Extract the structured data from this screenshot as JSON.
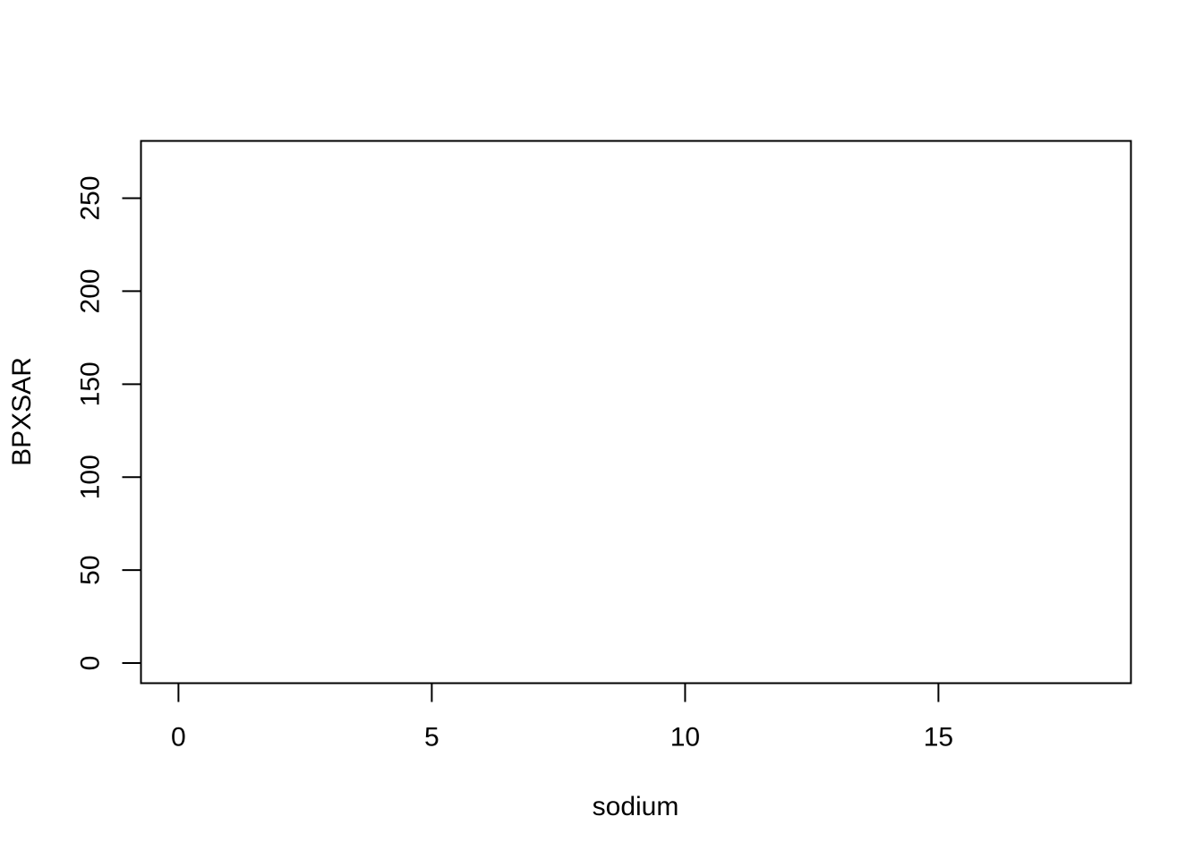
{
  "chart_data": {
    "type": "scatter",
    "title": "",
    "xlabel": "sodium",
    "ylabel": "BPXSAR",
    "x_ticks": [
      0,
      5,
      10,
      15
    ],
    "x_tick_labels": [
      "0",
      "5",
      "10",
      "15"
    ],
    "y_ticks": [
      0,
      50,
      100,
      150,
      200,
      250
    ],
    "y_tick_labels": [
      "0",
      "50",
      "100",
      "150",
      "200",
      "250"
    ],
    "xlim": [
      -0.74,
      18.8
    ],
    "ylim": [
      -10.8,
      280.8
    ],
    "grid": false,
    "points": []
  },
  "colors": {
    "axis": "#000000",
    "background": "#ffffff"
  }
}
